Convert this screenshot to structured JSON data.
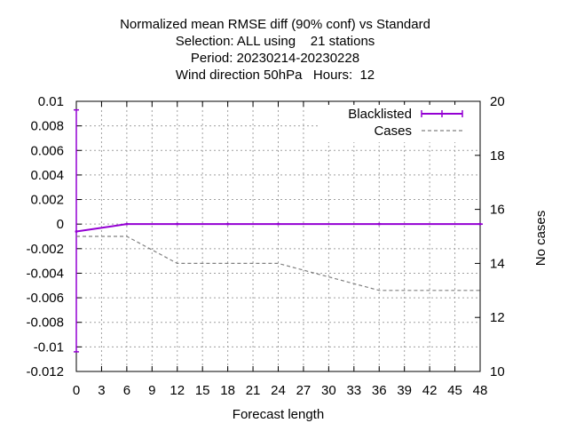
{
  "chart_data": {
    "type": "line",
    "title_lines": [
      "Normalized mean RMSE diff (90% conf) vs Standard",
      "Selection: ALL using    21 stations",
      "Period: 20230214-20230228",
      "Wind direction 50hPa   Hours:  12"
    ],
    "xlabel": "Forecast length",
    "ylabel": "",
    "y2label": "No cases",
    "xlim": [
      0,
      48
    ],
    "ylim": [
      -0.012,
      0.01
    ],
    "y2lim": [
      10,
      20
    ],
    "x_ticks": [
      "0",
      "3",
      "6",
      "9",
      "12",
      "15",
      "18",
      "21",
      "24",
      "27",
      "30",
      "33",
      "36",
      "39",
      "42",
      "45",
      "48"
    ],
    "y_ticks": [
      "0.01",
      "0.008",
      "0.006",
      "0.004",
      "0.002",
      "0",
      "-0.002",
      "-0.004",
      "-0.006",
      "-0.008",
      "-0.01",
      "-0.012"
    ],
    "y2_ticks": [
      "20",
      "18",
      "16",
      "14",
      "12",
      "10"
    ],
    "grid": true,
    "legend_position": "top-right",
    "series": [
      {
        "name": "Blacklisted",
        "axis": "y",
        "color": "#9400d3",
        "style": "solid-errorbars",
        "x": [
          0,
          6,
          12,
          18,
          24,
          36,
          48
        ],
        "y": [
          -0.0006,
          0,
          0,
          0,
          0,
          0,
          0
        ],
        "err_low": [
          -0.0104,
          0,
          0,
          0,
          0,
          0,
          0
        ],
        "err_high": [
          0.0093,
          0,
          0,
          0,
          0,
          0,
          0
        ]
      },
      {
        "name": "Cases",
        "axis": "y2",
        "color": "#808080",
        "style": "dashed",
        "x": [
          0,
          6,
          12,
          18,
          24,
          36,
          48
        ],
        "y": [
          15,
          15,
          14,
          14,
          14,
          13,
          13
        ]
      }
    ]
  }
}
